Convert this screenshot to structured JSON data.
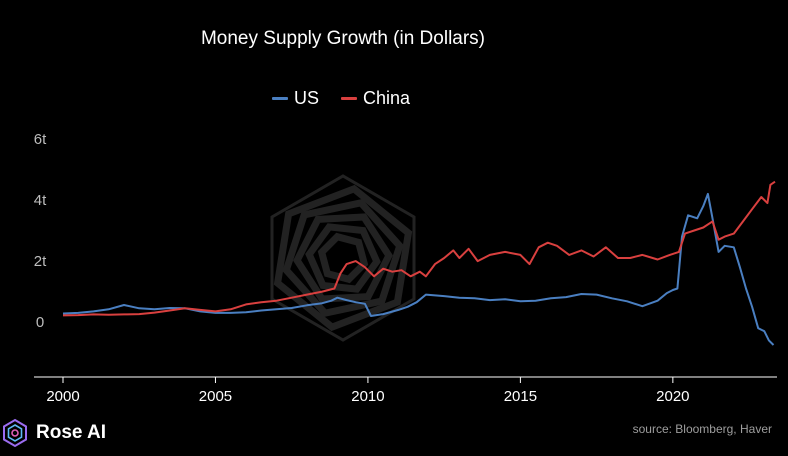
{
  "brand": {
    "name": "Rose AI",
    "logo_icon": "rose-ai-logo-icon"
  },
  "source": "source: Bloomberg, Haver",
  "watermark_icon": "rose-ai-watermark-icon",
  "chart_data": {
    "type": "line",
    "title": "Money Supply Growth (in Dollars)",
    "xlabel": "",
    "ylabel": "",
    "x_ticks": [
      2000,
      2005,
      2010,
      2015,
      2020
    ],
    "x_tick_labels": [
      "2000",
      "2005",
      "2010",
      "2015",
      "2020"
    ],
    "y_ticks": [
      0,
      2000000000000,
      4000000000000,
      6000000000000
    ],
    "y_tick_labels": [
      "0",
      "2t",
      "4t",
      "6t"
    ],
    "xlim": [
      2000,
      2023.35
    ],
    "ylim": [
      -1800000000000,
      6000000000000
    ],
    "grid": false,
    "legend_position": "top-center",
    "series": [
      {
        "name": "US",
        "color": "#4a7fc1",
        "x": [
          2000.0,
          2000.5,
          2001.0,
          2001.5,
          2002.0,
          2002.5,
          2003.0,
          2003.5,
          2004.0,
          2004.5,
          2005.0,
          2005.5,
          2006.0,
          2006.5,
          2007.0,
          2007.5,
          2008.0,
          2008.5,
          2008.8,
          2009.0,
          2009.3,
          2009.6,
          2009.9,
          2010.1,
          2010.5,
          2011.0,
          2011.3,
          2011.6,
          2011.9,
          2012.5,
          2013.0,
          2013.5,
          2014.0,
          2014.5,
          2015.0,
          2015.5,
          2016.0,
          2016.5,
          2017.0,
          2017.5,
          2018.0,
          2018.5,
          2019.0,
          2019.5,
          2019.8,
          2020.0,
          2020.15,
          2020.3,
          2020.5,
          2020.8,
          2021.0,
          2021.15,
          2021.3,
          2021.5,
          2021.7,
          2022.0,
          2022.2,
          2022.4,
          2022.6,
          2022.8,
          2023.0,
          2023.15,
          2023.3
        ],
        "y": [
          280000000000,
          300000000000,
          350000000000,
          420000000000,
          560000000000,
          450000000000,
          420000000000,
          460000000000,
          450000000000,
          350000000000,
          300000000000,
          300000000000,
          320000000000,
          380000000000,
          420000000000,
          460000000000,
          550000000000,
          620000000000,
          700000000000,
          800000000000,
          720000000000,
          650000000000,
          600000000000,
          200000000000,
          260000000000,
          400000000000,
          500000000000,
          650000000000,
          900000000000,
          850000000000,
          800000000000,
          780000000000,
          720000000000,
          750000000000,
          680000000000,
          700000000000,
          780000000000,
          820000000000,
          920000000000,
          900000000000,
          780000000000,
          680000000000,
          520000000000,
          700000000000,
          950000000000,
          1050000000000,
          1100000000000,
          2800000000000,
          3500000000000,
          3400000000000,
          3800000000000,
          4200000000000,
          3400000000000,
          2300000000000,
          2500000000000,
          2450000000000,
          1800000000000,
          1100000000000,
          500000000000,
          -200000000000,
          -300000000000,
          -600000000000,
          -750000000000
        ]
      },
      {
        "name": "China",
        "color": "#d9403f",
        "x": [
          2000.0,
          2000.5,
          2001.0,
          2001.5,
          2002.0,
          2002.5,
          2003.0,
          2003.5,
          2004.0,
          2004.5,
          2005.0,
          2005.5,
          2006.0,
          2006.5,
          2007.0,
          2007.5,
          2008.0,
          2008.5,
          2008.9,
          2009.1,
          2009.3,
          2009.6,
          2009.9,
          2010.2,
          2010.5,
          2010.8,
          2011.1,
          2011.4,
          2011.7,
          2011.9,
          2012.2,
          2012.5,
          2012.8,
          2013.0,
          2013.3,
          2013.6,
          2014.0,
          2014.5,
          2015.0,
          2015.3,
          2015.6,
          2015.9,
          2016.2,
          2016.6,
          2017.0,
          2017.4,
          2017.8,
          2018.2,
          2018.6,
          2019.0,
          2019.5,
          2019.9,
          2020.2,
          2020.4,
          2020.7,
          2021.0,
          2021.3,
          2021.5,
          2021.7,
          2022.0,
          2022.3,
          2022.6,
          2022.9,
          2023.1,
          2023.2,
          2023.35
        ],
        "y": [
          220000000000,
          230000000000,
          250000000000,
          240000000000,
          250000000000,
          260000000000,
          310000000000,
          380000000000,
          450000000000,
          400000000000,
          350000000000,
          420000000000,
          580000000000,
          650000000000,
          700000000000,
          800000000000,
          900000000000,
          1000000000000,
          1100000000000,
          1600000000000,
          1900000000000,
          2000000000000,
          1800000000000,
          1500000000000,
          1750000000000,
          1650000000000,
          1700000000000,
          1500000000000,
          1650000000000,
          1500000000000,
          1900000000000,
          2100000000000,
          2350000000000,
          2100000000000,
          2400000000000,
          2000000000000,
          2200000000000,
          2300000000000,
          2200000000000,
          1900000000000,
          2450000000000,
          2600000000000,
          2500000000000,
          2200000000000,
          2350000000000,
          2150000000000,
          2450000000000,
          2100000000000,
          2100000000000,
          2200000000000,
          2050000000000,
          2200000000000,
          2300000000000,
          2900000000000,
          3000000000000,
          3100000000000,
          3300000000000,
          2700000000000,
          2800000000000,
          2900000000000,
          3300000000000,
          3700000000000,
          4100000000000,
          3900000000000,
          4500000000000,
          4600000000000
        ]
      }
    ]
  }
}
